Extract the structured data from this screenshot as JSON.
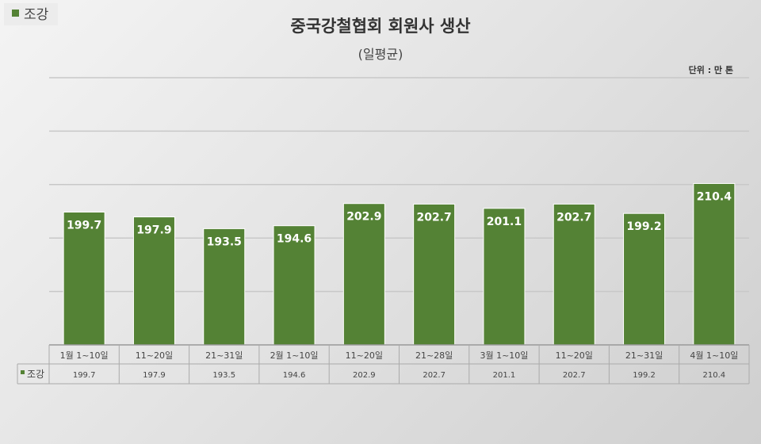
{
  "legend_label": "조강",
  "chart_data": {
    "type": "bar",
    "title": "중국강철협회 회원사 생산",
    "subtitle": "(일평균)",
    "unit_label": "단위 : 만 톤",
    "categories": [
      "1월 1~10일",
      "11~20일",
      "21~31일",
      "2월 1~10일",
      "11~20일",
      "21~28일",
      "3월 1~10일",
      "11~20일",
      "21~31일",
      "4월 1~10일"
    ],
    "series": [
      {
        "name": "조강",
        "values": [
          199.7,
          197.9,
          193.5,
          194.6,
          202.9,
          202.7,
          201.1,
          202.7,
          199.2,
          210.4
        ],
        "color": "#548235"
      }
    ],
    "value_labels": [
      "199.7",
      "197.9",
      "193.5",
      "194.6",
      "202.9",
      "202.7",
      "201.1",
      "202.7",
      "199.2",
      "210.4"
    ],
    "ylim": [
      150,
      250
    ],
    "ystep": 20,
    "grid": true,
    "legend_position": "top-left",
    "data_table": true
  }
}
